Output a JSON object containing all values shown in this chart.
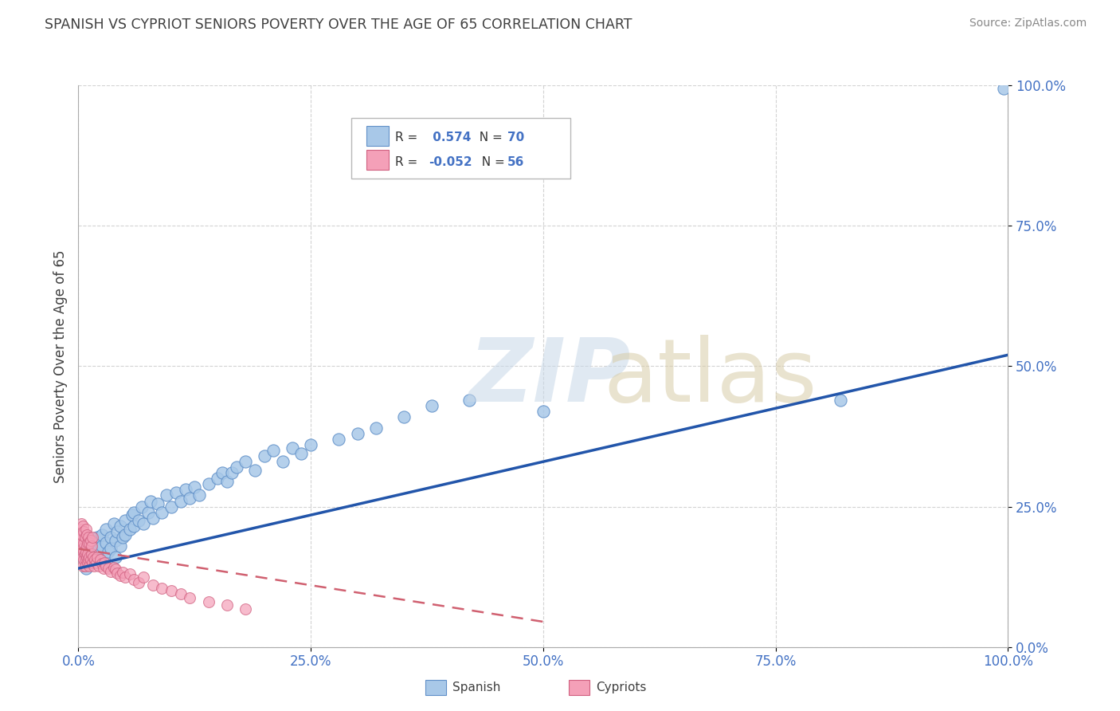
{
  "title": "SPANISH VS CYPRIOT SENIORS POVERTY OVER THE AGE OF 65 CORRELATION CHART",
  "source": "Source: ZipAtlas.com",
  "ylabel": "Seniors Poverty Over the Age of 65",
  "xlim": [
    0,
    1
  ],
  "ylim": [
    0,
    1
  ],
  "xticks": [
    0.0,
    0.25,
    0.5,
    0.75,
    1.0
  ],
  "yticks": [
    0.0,
    0.25,
    0.5,
    0.75,
    1.0
  ],
  "xtick_labels": [
    "0.0%",
    "25.0%",
    "50.0%",
    "75.0%",
    "100.0%"
  ],
  "ytick_labels": [
    "0.0%",
    "25.0%",
    "50.0%",
    "75.0%",
    "100.0%"
  ],
  "spanish_R": 0.574,
  "spanish_N": 70,
  "cypriot_R": -0.052,
  "cypriot_N": 56,
  "spanish_color": "#a8c8e8",
  "cypriot_color": "#f4a0b8",
  "spanish_edge_color": "#6090c8",
  "cypriot_edge_color": "#d06080",
  "spanish_trend_color": "#2255aa",
  "cypriot_trend_color": "#d06070",
  "background_color": "#ffffff",
  "grid_color": "#c8c8c8",
  "title_color": "#404040",
  "tick_color": "#4472c4",
  "spanish_x": [
    0.005,
    0.008,
    0.01,
    0.012,
    0.015,
    0.015,
    0.018,
    0.02,
    0.02,
    0.022,
    0.025,
    0.025,
    0.028,
    0.03,
    0.03,
    0.032,
    0.035,
    0.035,
    0.038,
    0.04,
    0.04,
    0.042,
    0.045,
    0.045,
    0.048,
    0.05,
    0.05,
    0.055,
    0.058,
    0.06,
    0.06,
    0.065,
    0.068,
    0.07,
    0.075,
    0.078,
    0.08,
    0.085,
    0.09,
    0.095,
    0.1,
    0.105,
    0.11,
    0.115,
    0.12,
    0.125,
    0.13,
    0.14,
    0.15,
    0.155,
    0.16,
    0.165,
    0.17,
    0.18,
    0.19,
    0.2,
    0.21,
    0.22,
    0.23,
    0.24,
    0.25,
    0.28,
    0.3,
    0.32,
    0.35,
    0.38,
    0.42,
    0.5,
    0.82,
    0.995
  ],
  "spanish_y": [
    0.16,
    0.14,
    0.175,
    0.155,
    0.19,
    0.17,
    0.185,
    0.165,
    0.195,
    0.175,
    0.18,
    0.2,
    0.16,
    0.185,
    0.21,
    0.17,
    0.195,
    0.175,
    0.22,
    0.19,
    0.16,
    0.205,
    0.18,
    0.215,
    0.195,
    0.2,
    0.225,
    0.21,
    0.235,
    0.215,
    0.24,
    0.225,
    0.25,
    0.22,
    0.24,
    0.26,
    0.23,
    0.255,
    0.24,
    0.27,
    0.25,
    0.275,
    0.26,
    0.28,
    0.265,
    0.285,
    0.27,
    0.29,
    0.3,
    0.31,
    0.295,
    0.31,
    0.32,
    0.33,
    0.315,
    0.34,
    0.35,
    0.33,
    0.355,
    0.345,
    0.36,
    0.37,
    0.38,
    0.39,
    0.41,
    0.43,
    0.44,
    0.42,
    0.44,
    0.995
  ],
  "cypriot_x": [
    0.002,
    0.003,
    0.003,
    0.004,
    0.004,
    0.005,
    0.005,
    0.005,
    0.006,
    0.006,
    0.006,
    0.007,
    0.007,
    0.008,
    0.008,
    0.009,
    0.009,
    0.01,
    0.01,
    0.011,
    0.012,
    0.012,
    0.013,
    0.014,
    0.015,
    0.016,
    0.017,
    0.018,
    0.019,
    0.02,
    0.022,
    0.024,
    0.025,
    0.027,
    0.028,
    0.03,
    0.032,
    0.035,
    0.038,
    0.04,
    0.042,
    0.045,
    0.048,
    0.05,
    0.055,
    0.06,
    0.065,
    0.07,
    0.08,
    0.09,
    0.1,
    0.11,
    0.12,
    0.14,
    0.16,
    0.18
  ],
  "cypriot_y": [
    0.19,
    0.195,
    0.165,
    0.175,
    0.185,
    0.145,
    0.16,
    0.175,
    0.155,
    0.17,
    0.185,
    0.145,
    0.165,
    0.155,
    0.17,
    0.16,
    0.18,
    0.15,
    0.165,
    0.155,
    0.145,
    0.16,
    0.155,
    0.165,
    0.15,
    0.16,
    0.145,
    0.155,
    0.15,
    0.16,
    0.145,
    0.155,
    0.148,
    0.14,
    0.15,
    0.145,
    0.14,
    0.135,
    0.142,
    0.138,
    0.132,
    0.128,
    0.133,
    0.125,
    0.13,
    0.12,
    0.115,
    0.125,
    0.11,
    0.105,
    0.1,
    0.095,
    0.088,
    0.08,
    0.075,
    0.068
  ],
  "cypriot_extra_x": [
    0.002,
    0.003,
    0.004,
    0.005,
    0.006,
    0.007,
    0.008,
    0.009,
    0.01,
    0.011,
    0.012,
    0.013,
    0.014,
    0.015
  ],
  "cypriot_extra_y": [
    0.21,
    0.22,
    0.2,
    0.215,
    0.205,
    0.195,
    0.21,
    0.2,
    0.185,
    0.195,
    0.185,
    0.19,
    0.18,
    0.195
  ],
  "sp_trend_x0": 0.0,
  "sp_trend_y0": 0.14,
  "sp_trend_x1": 1.0,
  "sp_trend_y1": 0.52,
  "cy_trend_x0": 0.0,
  "cy_trend_y0": 0.175,
  "cy_trend_x1": 0.5,
  "cy_trend_y1": 0.045
}
